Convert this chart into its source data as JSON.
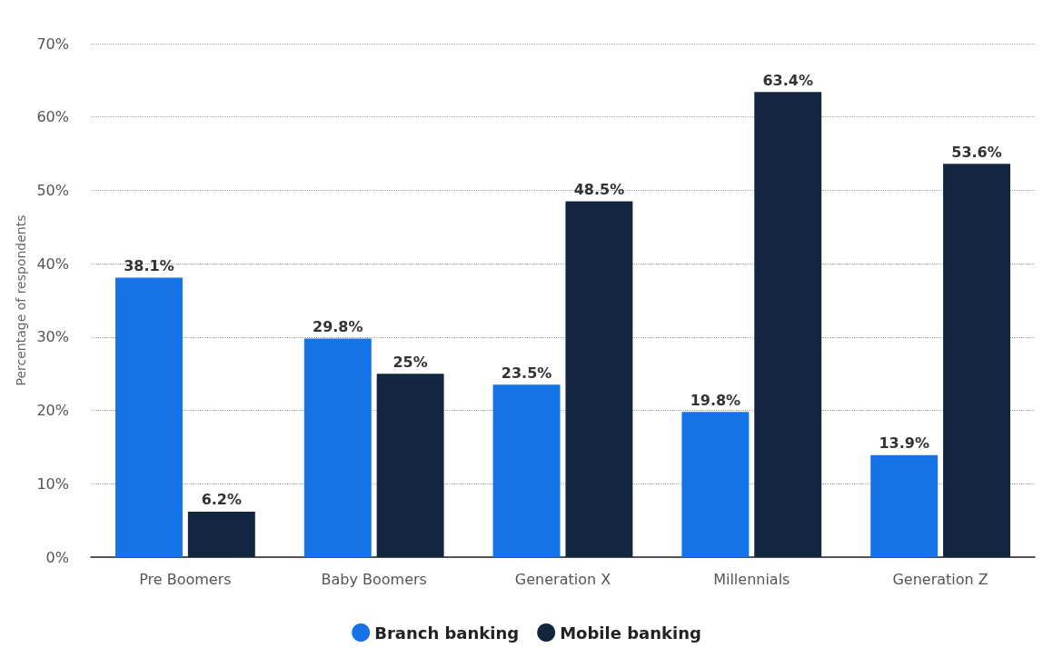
{
  "chart_data": {
    "type": "bar",
    "ylabel": "Percentage of respondents",
    "categories": [
      "Pre Boomers",
      "Baby Boomers",
      "Generation X",
      "Millennials",
      "Generation Z"
    ],
    "series": [
      {
        "name": "Branch banking",
        "color": "#1473e6",
        "values": [
          38.1,
          29.8,
          23.5,
          19.8,
          13.9
        ],
        "value_labels": [
          "38.1%",
          "29.8%",
          "23.5%",
          "19.8%",
          "13.9%"
        ]
      },
      {
        "name": "Mobile banking",
        "color": "#12263f",
        "values": [
          6.2,
          25,
          48.5,
          63.4,
          53.6
        ],
        "value_labels": [
          "6.2%",
          "25%",
          "48.5%",
          "63.4%",
          "53.6%"
        ]
      }
    ],
    "ylim": [
      0,
      70
    ],
    "yticks": [
      {
        "value": 0,
        "label": "0%"
      },
      {
        "value": 10,
        "label": "10%"
      },
      {
        "value": 20,
        "label": "20%"
      },
      {
        "value": 30,
        "label": "30%"
      },
      {
        "value": 40,
        "label": "40%"
      },
      {
        "value": 50,
        "label": "50%"
      },
      {
        "value": 60,
        "label": "60%"
      },
      {
        "value": 70,
        "label": "70%"
      }
    ],
    "grid": "y",
    "legend": "bottom",
    "marker": "circle"
  }
}
